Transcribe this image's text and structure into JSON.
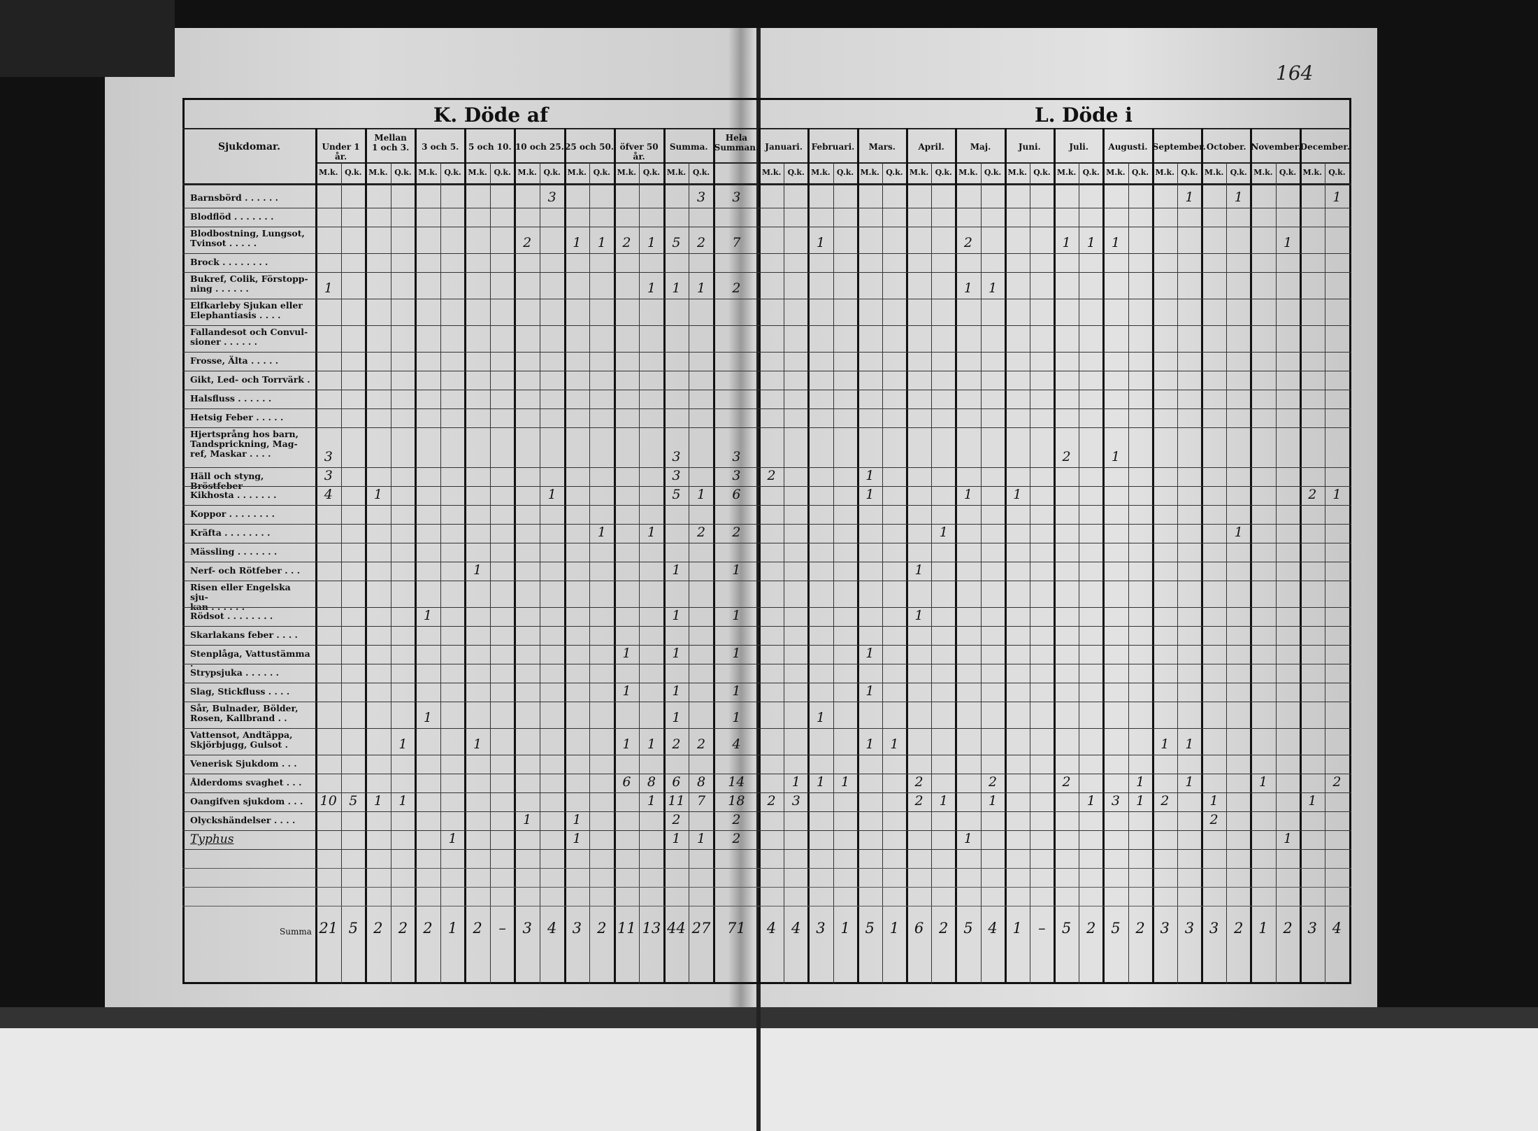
{
  "page_number": "164",
  "left_title": "K. Döde af",
  "right_title": "L. Döde i",
  "label_header": "Sjukdomar.",
  "sub_labels": {
    "mk": "M.k.",
    "qk": "Q.k."
  },
  "age_groups": [
    {
      "label": "Under 1 år.",
      "m": "u1m",
      "q": "u1q"
    },
    {
      "label": "Mellan\n1 och 3.",
      "m": "m13m",
      "q": "m13q"
    },
    {
      "label": "3 och 5.",
      "m": "a35m",
      "q": "a35q"
    },
    {
      "label": "5 och 10.",
      "m": "a510m",
      "q": "a510q"
    },
    {
      "label": "10 och 25.",
      "m": "a1025m",
      "q": "a1025q"
    },
    {
      "label": "25 och 50.",
      "m": "a2550m",
      "q": "a2550q"
    },
    {
      "label": "öfver 50 år.",
      "m": "o50m",
      "q": "o50q"
    },
    {
      "label": "Summa.",
      "m": "sm",
      "q": "sq"
    }
  ],
  "total_header": {
    "label": "Hela\nSumman.",
    "key": "hela"
  },
  "months": [
    {
      "label": "Januari.",
      "m": "jan_m",
      "q": "jan_q"
    },
    {
      "label": "Februari.",
      "m": "feb_m",
      "q": "feb_q"
    },
    {
      "label": "Mars.",
      "m": "mar_m",
      "q": "mar_q"
    },
    {
      "label": "April.",
      "m": "apr_m",
      "q": "apr_q"
    },
    {
      "label": "Maj.",
      "m": "maj_m",
      "q": "maj_q"
    },
    {
      "label": "Juni.",
      "m": "jun_m",
      "q": "jun_q"
    },
    {
      "label": "Juli.",
      "m": "jul_m",
      "q": "jul_q"
    },
    {
      "label": "Augusti.",
      "m": "aug_m",
      "q": "aug_q"
    },
    {
      "label": "September.",
      "m": "sep_m",
      "q": "sep_q"
    },
    {
      "label": "October.",
      "m": "oct_m",
      "q": "oct_q"
    },
    {
      "label": "November.",
      "m": "nov_m",
      "q": "nov_q"
    },
    {
      "label": "December.",
      "m": "dec_m",
      "q": "dec_q"
    }
  ],
  "rows": [
    {
      "label": "Barnsbörd . . . . . .",
      "lines": 1,
      "values": {
        "a1025q": "3",
        "sq": "3",
        "hela": "3",
        "sep_q": "1",
        "oct_q": "1",
        "dec_q": "1"
      }
    },
    {
      "label": "Blodflöd . . . . . . .",
      "lines": 1,
      "values": {}
    },
    {
      "label": "Blodbostning, Lungsot,\n   Tvinsot . . . . .",
      "lines": 2,
      "values": {
        "a1025m": "2",
        "a2550m": "1",
        "a2550q": "1",
        "o50m": "2",
        "o50q": "1",
        "sm": "5",
        "sq": "2",
        "hela": "7",
        "feb_m": "1",
        "maj_m": "2",
        "jul_m": "1",
        "jul_q": "1",
        "aug_m": "1",
        "nov_q": "1"
      }
    },
    {
      "label": "Brock . . . . . . . .",
      "lines": 1,
      "values": {}
    },
    {
      "label": "Bukref, Colik, Förstopp-\n   ning . . . . . .",
      "lines": 2,
      "values": {
        "u1m": "1",
        "o50q": "1",
        "sm": "1",
        "sq": "1",
        "hela": "2",
        "maj_m": "1",
        "maj_q": "1"
      }
    },
    {
      "label": "Elfkarleby Sjukan eller\n   Elephantiasis . . . .",
      "lines": 2,
      "values": {}
    },
    {
      "label": "Fallandesot och Convul-\n   sioner . . . . . .",
      "lines": 2,
      "values": {}
    },
    {
      "label": "Frosse, Älta . . . . .",
      "lines": 1,
      "values": {}
    },
    {
      "label": "Gikt, Led- och Torrvärk .",
      "lines": 1,
      "values": {}
    },
    {
      "label": "Halsfluss . . . . . .",
      "lines": 1,
      "values": {}
    },
    {
      "label": "Hetsig Feber . . . . .",
      "lines": 1,
      "values": {}
    },
    {
      "label": "Hjertsprång hos barn,\n   Tandsprickning, Mag-\n   ref, Maskar . . . .",
      "lines": 3,
      "values": {
        "u1m": "3",
        "sm": "3",
        "hela": "3",
        "jul_m": "2",
        "aug_m": "1"
      }
    },
    {
      "label": "Häll och styng, Bröstfeber",
      "lines": 1,
      "values": {
        "u1m": "3",
        "sm": "3",
        "hela": "3",
        "jan_m": "2",
        "mar_m": "1"
      }
    },
    {
      "label": "Kikhosta . . . . . . .",
      "lines": 1,
      "values": {
        "u1m": "4",
        "m13m": "1",
        "a1025q": "1",
        "sm": "5",
        "sq": "1",
        "hela": "6",
        "mar_m": "1",
        "maj_m": "1",
        "jun_m": "1",
        "dec_m": "2",
        "dec_q": "1"
      }
    },
    {
      "label": "Koppor . . . . . . . .",
      "lines": 1,
      "values": {}
    },
    {
      "label": "Kräfta . . . . . . . .",
      "lines": 1,
      "values": {
        "a2550q": "1",
        "o50q": "1",
        "sq": "2",
        "hela": "2",
        "apr_q": "1",
        "oct_q": "1"
      }
    },
    {
      "label": "Mässling . . . . . . .",
      "lines": 1,
      "values": {}
    },
    {
      "label": "Nerf- och Rötfeber . . .",
      "lines": 1,
      "values": {
        "a510m": "1",
        "sm": "1",
        "hela": "1",
        "apr_m": "1"
      }
    },
    {
      "label": "Risen eller Engelska sju-\n   kan . . . . . .",
      "lines": 2,
      "values": {}
    },
    {
      "label": "Rödsot . . . . . . . .",
      "lines": 1,
      "values": {
        "a35m": "1",
        "sm": "1",
        "hela": "1",
        "apr_m": "1"
      }
    },
    {
      "label": "Skarlakans feber . . . .",
      "lines": 1,
      "values": {}
    },
    {
      "label": "Stenplåga, Vattustämma .",
      "lines": 1,
      "values": {
        "o50m": "1",
        "sm": "1",
        "hela": "1",
        "mar_m": "1"
      }
    },
    {
      "label": "Strypsjuka . . . . . .",
      "lines": 1,
      "values": {}
    },
    {
      "label": "Slag, Stickfluss . . . .",
      "lines": 1,
      "values": {
        "o50m": "1",
        "sm": "1",
        "hela": "1",
        "mar_m": "1"
      }
    },
    {
      "label": "Sår, Bulnader, Bölder,\n   Rosen, Kallbrand . .",
      "lines": 2,
      "values": {
        "a35m": "1",
        "sm": "1",
        "hela": "1",
        "feb_m": "1"
      }
    },
    {
      "label": "Vattensot, Andtäppa,\n   Skjörbjugg, Gulsot .",
      "lines": 2,
      "values": {
        "m13q": "1",
        "a510m": "1",
        "o50m": "1",
        "o50q": "1",
        "sm": "2",
        "sq": "2",
        "hela": "4",
        "mar_m": "1",
        "mar_q": "1",
        "sep_m": "1",
        "sep_q": "1"
      }
    },
    {
      "label": "Venerisk Sjukdom . . .",
      "lines": 1,
      "values": {}
    },
    {
      "label": "Ålderdoms svaghet . . .",
      "lines": 1,
      "values": {
        "o50m": "6",
        "o50q": "8",
        "sm": "6",
        "sq": "8",
        "hela": "14",
        "jan_q": "1",
        "feb_m": "1",
        "feb_q": "1",
        "apr_m": "2",
        "maj_q": "2",
        "jul_m": "2",
        "aug_q": "1",
        "sep_q": "1",
        "nov_m": "1",
        "dec_q": "2"
      }
    },
    {
      "label": "Oangifven sjukdom . . .",
      "lines": 1,
      "values": {
        "u1m": "10",
        "u1q": "5",
        "m13m": "1",
        "m13q": "1",
        "o50q": "1",
        "sm": "11",
        "sq": "7",
        "hela": "18",
        "jan_m": "2",
        "jan_q": "3",
        "apr_m": "2",
        "apr_q": "1",
        "maj_q": "1",
        "jul_q": "1",
        "aug_m": "3",
        "aug_q": "1",
        "sep_m": "2",
        "oct_m": "1",
        "dec_m": "1"
      }
    },
    {
      "label": "Olyckshändelser . . . .",
      "lines": 1,
      "values": {
        "a1025m": "1",
        "a2550m": "1",
        "sm": "2",
        "hela": "2",
        "oct_m": "2"
      }
    },
    {
      "label": "Typhus",
      "lines": 1,
      "handwritten": true,
      "values": {
        "a35q": "1",
        "a2550m": "1",
        "sm": "1",
        "sq": "1",
        "hela": "2",
        "maj_m": "1",
        "nov_q": "1"
      }
    }
  ],
  "summa": {
    "label": "Summa",
    "values": {
      "u1m": "21",
      "u1q": "5",
      "m13m": "2",
      "m13q": "2",
      "a35m": "2",
      "a35q": "1",
      "a510m": "2",
      "a510q": "–",
      "a1025m": "3",
      "a1025q": "4",
      "a2550m": "3",
      "a2550q": "2",
      "o50m": "11",
      "o50q": "13",
      "sm": "44",
      "sq": "27",
      "hela": "71",
      "jan_m": "4",
      "jan_q": "4",
      "feb_m": "3",
      "feb_q": "1",
      "mar_m": "5",
      "mar_q": "1",
      "apr_m": "6",
      "apr_q": "2",
      "maj_m": "5",
      "maj_q": "4",
      "jun_m": "1",
      "jun_q": "–",
      "jul_m": "5",
      "jul_q": "2",
      "aug_m": "5",
      "aug_q": "2",
      "sep_m": "3",
      "sep_q": "3",
      "oct_m": "3",
      "oct_q": "2",
      "nov_m": "1",
      "nov_q": "2",
      "dec_m": "3",
      "dec_q": "4"
    }
  }
}
